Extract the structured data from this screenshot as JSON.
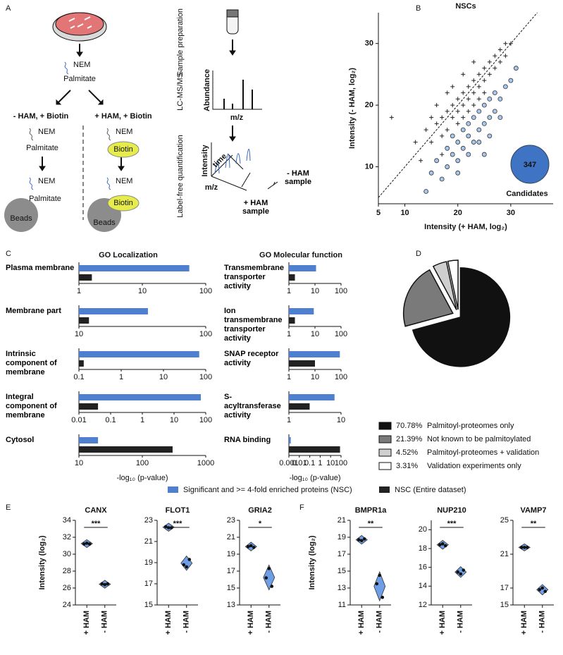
{
  "panel_labels": [
    "A",
    "B",
    "C",
    "D",
    "E",
    "F"
  ],
  "diagram": {
    "start": {
      "reagent": "NEM",
      "lipid": "Palmitate"
    },
    "conditions": [
      {
        "label": "- HAM, + Biotin",
        "steps": [
          {
            "reagent": "NEM",
            "tag": "Palmitate"
          },
          {
            "reagent": "NEM",
            "tag": "Palmitate"
          }
        ],
        "bead": "Beads"
      },
      {
        "label": "+ HAM, + Biotin",
        "steps": [
          {
            "reagent": "NEM",
            "tag": "Biotin"
          },
          {
            "reagent": "NEM",
            "tag": "Biotin"
          }
        ],
        "bead": "Beads"
      }
    ],
    "workflow": {
      "steps": [
        "Sample preparation",
        "LC-MS/MS",
        "Label-free quantification"
      ],
      "ms_ylabel": "Abundance",
      "ms_xlabel": "m/z",
      "lfq_intensity": "Intensity",
      "lfq_time": "time",
      "lfq_mz": "m/z",
      "samples": [
        "- HAM sample",
        "+ HAM sample"
      ]
    }
  },
  "legend": {
    "items": [
      {
        "name": "Significant and >= 4-fold enriched proteins (NSC)",
        "color": "#4f7fcf"
      },
      {
        "name": "NSC (Entire dataset)",
        "color": "#222222"
      }
    ]
  },
  "chart_data": [
    {
      "type": "scatter",
      "title": "NSCs",
      "xlabel": "Intensity (+ HAM, log₂)",
      "ylabel": "Intensity (- HAM, log₂)",
      "xlim": [
        5,
        38
      ],
      "ylim": [
        4,
        35
      ],
      "xticks": [
        5,
        10,
        20,
        30
      ],
      "yticks": [
        10,
        20,
        30
      ],
      "identity_line": true,
      "series": [
        {
          "marker": "+",
          "color": "#222222",
          "x": [
            7.5,
            14,
            15,
            16,
            17,
            17,
            18,
            18,
            19,
            19,
            20,
            20,
            20,
            21,
            21,
            21,
            22,
            22,
            22,
            23,
            23,
            23,
            24,
            24,
            24,
            25,
            25,
            25,
            26,
            26,
            27,
            27,
            28,
            28,
            29,
            29,
            30,
            15,
            16,
            18,
            19,
            21,
            23,
            12,
            13,
            17
          ],
          "values": [
            18,
            16,
            14,
            17,
            18,
            15,
            19,
            16,
            20,
            18,
            21,
            19,
            17,
            22,
            20,
            18,
            23,
            21,
            19,
            24,
            22,
            20,
            25,
            23,
            21,
            26,
            24,
            22,
            27,
            25,
            28,
            26,
            29,
            27,
            30,
            28,
            30,
            18,
            20,
            22,
            23,
            25,
            27,
            14,
            11,
            12
          ]
        },
        {
          "marker": "o",
          "color": "#a9c6ec",
          "x": [
            14,
            15,
            16,
            17,
            18,
            18,
            19,
            19,
            20,
            20,
            21,
            21,
            22,
            22,
            22,
            23,
            23,
            24,
            24,
            25,
            25,
            26,
            26,
            27,
            27,
            28,
            29,
            30,
            31,
            20,
            24,
            26,
            28,
            25
          ],
          "values": [
            6,
            9,
            11,
            8,
            10,
            13,
            12,
            15,
            11,
            14,
            13,
            16,
            12,
            15,
            17,
            14,
            18,
            16,
            19,
            17,
            20,
            18,
            21,
            19,
            22,
            21,
            23,
            24,
            26,
            9,
            14,
            15,
            18,
            12
          ]
        }
      ],
      "annotation": {
        "count": 347,
        "label": "Candidates",
        "color": "#3f73c4"
      }
    },
    {
      "type": "bar",
      "orientation": "horizontal",
      "log_x": true,
      "title": "GO Localization",
      "xlabel": "-log₁₀ (p-value)",
      "panels": [
        {
          "category": "Plasma membrane",
          "xlim": [
            1,
            100
          ],
          "xticks": [
            1,
            10,
            100
          ],
          "values": [
            55,
            1.6
          ]
        },
        {
          "category": "Membrane part",
          "xlim": [
            10,
            100
          ],
          "xticks": [
            10,
            100
          ],
          "values": [
            35,
            12
          ]
        },
        {
          "category": "Intrinsic component of membrane",
          "xlim": [
            0.1,
            100
          ],
          "xticks": [
            0.1,
            1,
            10,
            100
          ],
          "values": [
            70,
            0.13
          ]
        },
        {
          "category": "Integral component of membrane",
          "xlim": [
            0.01,
            100
          ],
          "xticks": [
            0.01,
            0.1,
            1,
            10,
            100
          ],
          "values": [
            70,
            0.04
          ]
        },
        {
          "category": "Cytosol",
          "xlim": [
            10,
            1000
          ],
          "xticks": [
            10,
            100,
            1000
          ],
          "values": [
            20,
            300
          ]
        }
      ]
    },
    {
      "type": "bar",
      "orientation": "horizontal",
      "log_x": true,
      "title": "GO Molecular function",
      "xlabel": "-log₁₀ (p-value)",
      "panels": [
        {
          "category": "Transmembrane transporter activity",
          "xlim": [
            1,
            100
          ],
          "xticks": [
            1,
            10,
            100
          ],
          "values": [
            11,
            1.7
          ]
        },
        {
          "category": "Ion transmembrane transporter activity",
          "xlim": [
            1,
            100
          ],
          "xticks": [
            1,
            10,
            100
          ],
          "values": [
            9,
            1.7
          ]
        },
        {
          "category": "SNAP receptor activity",
          "xlim": [
            1,
            100
          ],
          "xticks": [
            1,
            10,
            100
          ],
          "values": [
            90,
            10
          ]
        },
        {
          "category": "S-acyltransferase activity",
          "xlim": [
            1,
            10
          ],
          "xticks": [
            1,
            10
          ],
          "values": [
            7.5,
            2.5
          ]
        },
        {
          "category": "RNA binding",
          "xlim": [
            0.001,
            100
          ],
          "xticks": [
            0.001,
            0.01,
            0.1,
            1,
            10,
            100
          ],
          "values": [
            0.0015,
            80
          ]
        }
      ]
    },
    {
      "type": "pie",
      "categories": [
        "Palmitoyl-proteomes only",
        "Not known to be palmitoylated",
        "Palmitoyl-proteomes + validation",
        "Validation experiments only"
      ],
      "values": [
        70.78,
        21.39,
        4.52,
        3.31
      ],
      "value_labels": [
        "70.78%",
        "21.39%",
        "4.52%",
        "3.31%"
      ],
      "colors": [
        "#111111",
        "#7a7a7a",
        "#cfcfcf",
        "#ffffff"
      ]
    },
    {
      "type": "violin",
      "ylabel": "Intensity (log₂)",
      "color": "#6e9ee6",
      "panels": [
        {
          "title": "CANX",
          "ylim": [
            24,
            34
          ],
          "yticks": [
            24,
            26,
            28,
            30,
            32,
            34
          ],
          "groups": [
            "+ HAM",
            "- HAM"
          ],
          "values": [
            [
              31.2,
              31.3,
              31.2
            ],
            [
              26.5,
              26.4,
              26.5
            ]
          ],
          "significance": "***"
        },
        {
          "title": "FLOT1",
          "ylim": [
            15,
            23
          ],
          "yticks": [
            15,
            17,
            19,
            21,
            23
          ],
          "groups": [
            "+ HAM",
            "- HAM"
          ],
          "values": [
            [
              22.4,
              22.3,
              22.3
            ],
            [
              18.8,
              18.6,
              19.3
            ]
          ],
          "significance": "***"
        },
        {
          "title": "GRIA2",
          "ylim": [
            13,
            23
          ],
          "yticks": [
            13,
            15,
            17,
            19,
            21,
            23
          ],
          "groups": [
            "+ HAM",
            "- HAM"
          ],
          "values": [
            [
              19.9,
              20.0,
              19.8
            ],
            [
              16.2,
              17.3,
              15.2
            ]
          ],
          "significance": "*"
        }
      ]
    },
    {
      "type": "violin",
      "ylabel": "Intensity (log₂)",
      "color": "#6e9ee6",
      "panels": [
        {
          "title": "BMPR1a",
          "ylim": [
            11,
            21
          ],
          "yticks": [
            11,
            13,
            15,
            17,
            19,
            21
          ],
          "groups": [
            "+ HAM",
            "- HAM"
          ],
          "values": [
            [
              18.7,
              18.6,
              18.8
            ],
            [
              13.5,
              14.5,
              11.9
            ]
          ],
          "significance": "**"
        },
        {
          "title": "NUP210",
          "ylim": [
            12,
            21
          ],
          "yticks": [
            12,
            14,
            16,
            18,
            20
          ],
          "groups": [
            "+ HAM",
            "- HAM"
          ],
          "values": [
            [
              18.4,
              18.5,
              18.3
            ],
            [
              15.5,
              15.3,
              15.7
            ]
          ],
          "significance": "***"
        },
        {
          "title": "VAMP7",
          "ylim": [
            15,
            25
          ],
          "yticks": [
            15,
            17,
            21,
            25
          ],
          "groups": [
            "+ HAM",
            "- HAM"
          ],
          "values": [
            [
              21.8,
              21.8,
              21.8
            ],
            [
              16.8,
              17.0,
              16.6
            ]
          ],
          "significance": "**"
        }
      ]
    }
  ]
}
